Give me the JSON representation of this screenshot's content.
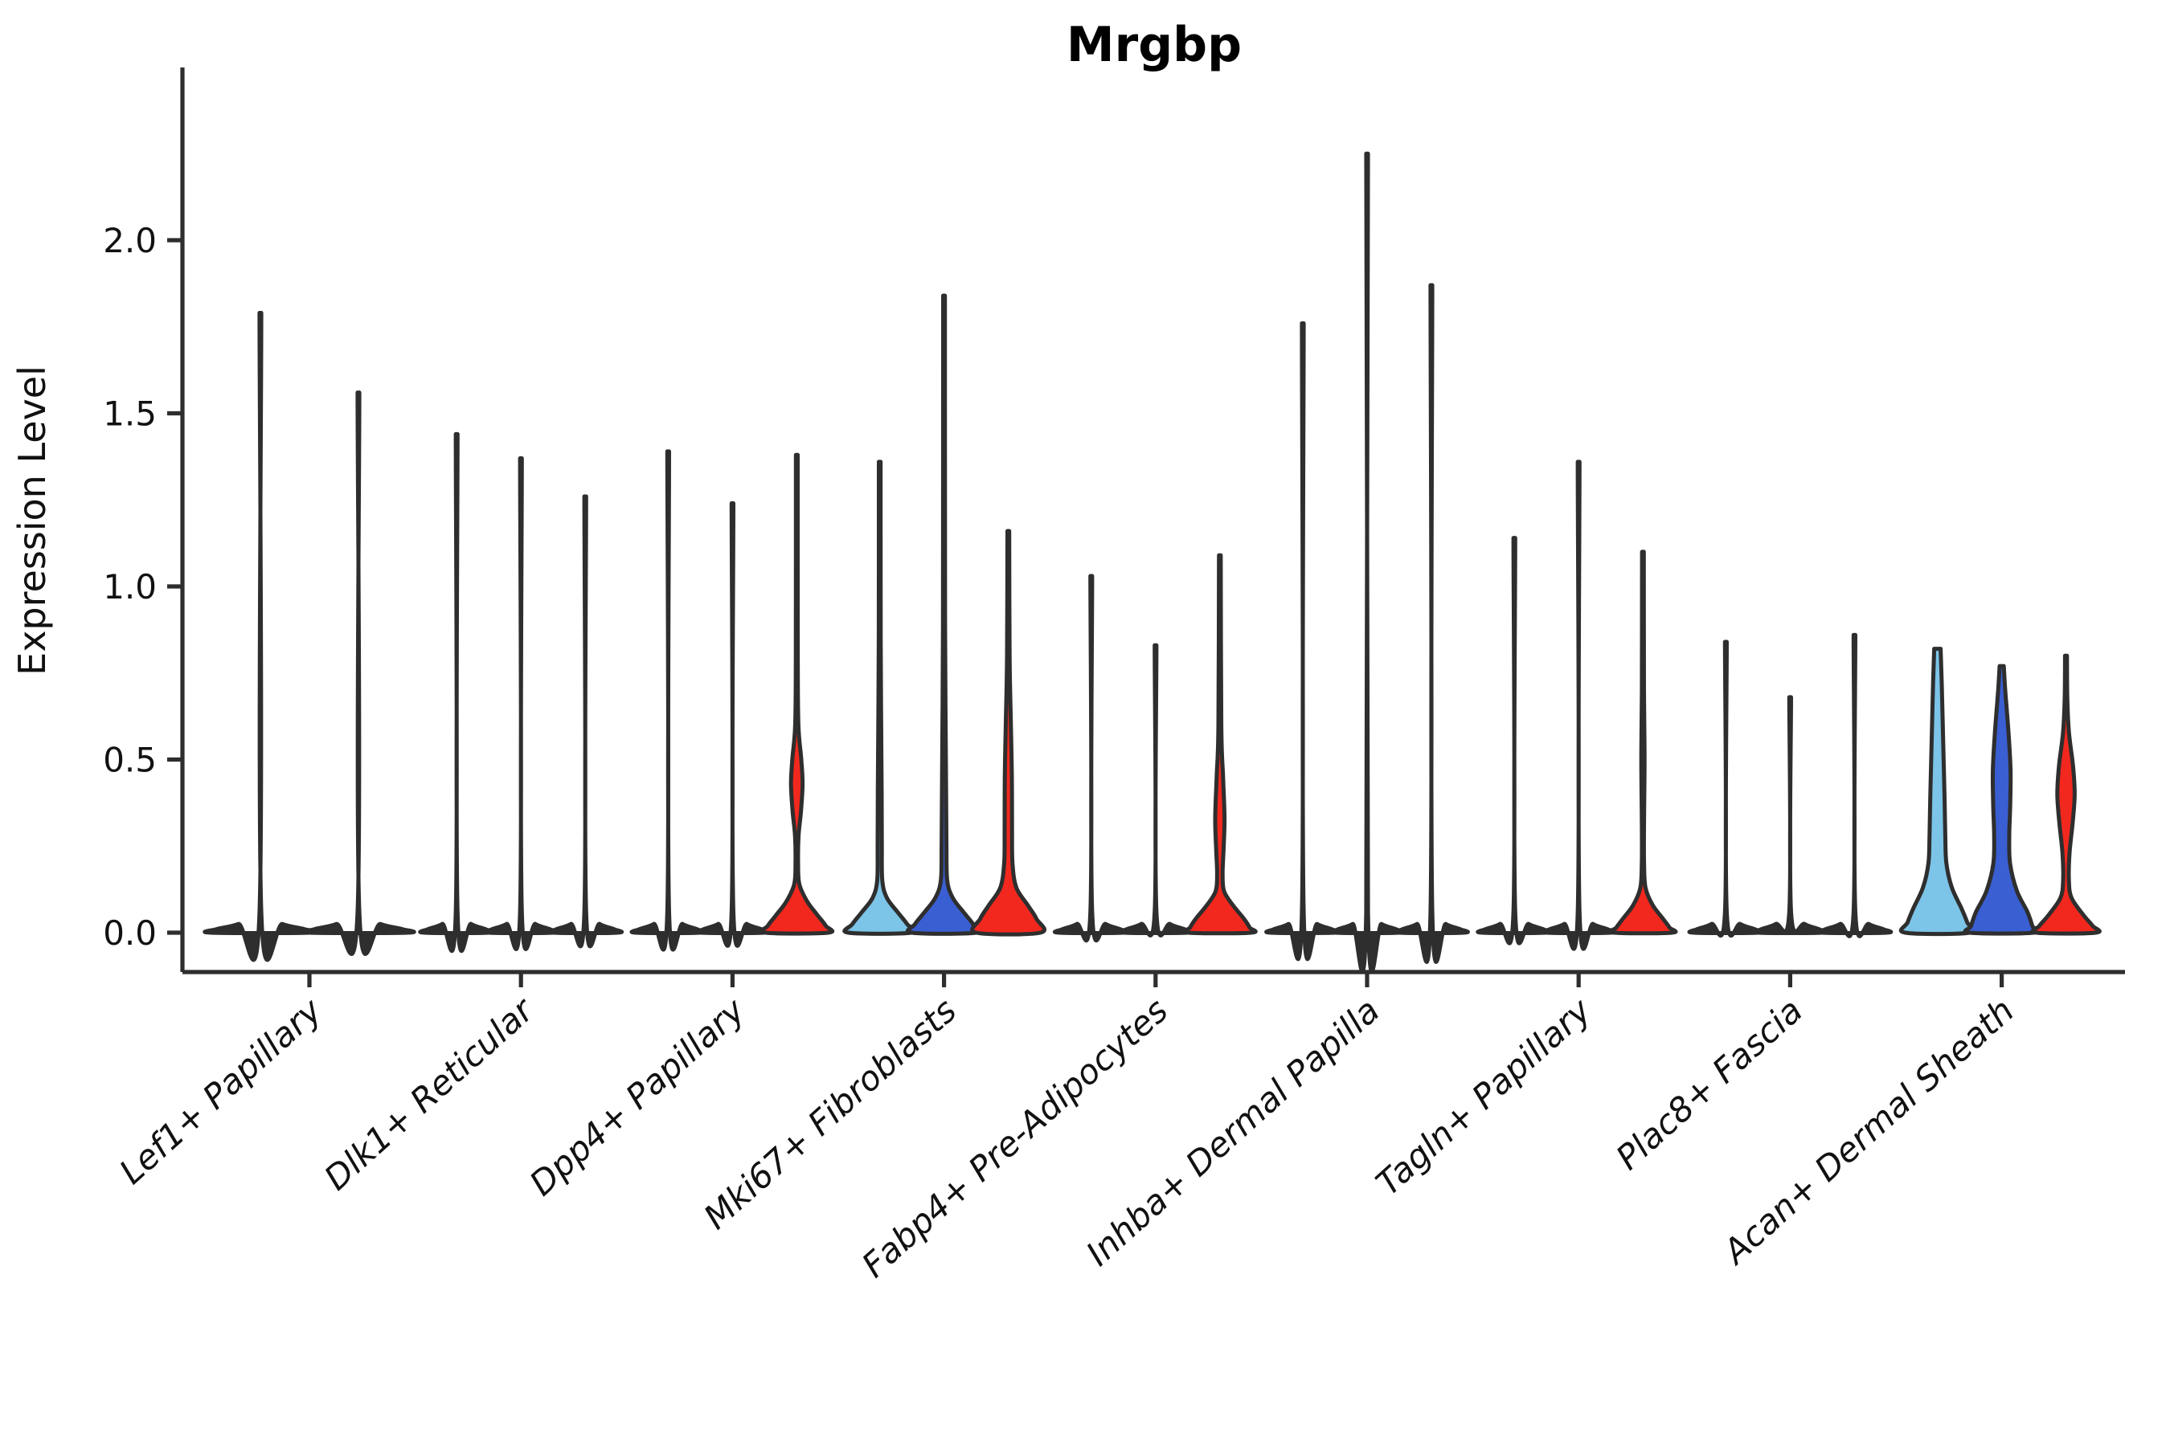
{
  "chart_data": {
    "type": "violin",
    "title": "Mrgbp",
    "xlabel": "",
    "ylabel": "Expression Level",
    "ytick_labels": [
      "0.0",
      "0.5",
      "1.0",
      "1.5",
      "2.0"
    ],
    "yticks": [
      0.0,
      0.5,
      1.0,
      1.5,
      2.0
    ],
    "ylim": [
      -0.06,
      2.35
    ],
    "grid": false,
    "legend": "none",
    "categories": [
      "Lef1+ Papillary",
      "Dlk1+ Reticular",
      "Dpp4+ Papillary",
      "Mki67+ Fibroblasts",
      "Fabp4+ Pre-Adipocytes",
      "Inhba+ Dermal Papilla",
      "Tagln+ Papillary",
      "Plac8+ Fascia",
      "Acan+ Dermal Sheath"
    ],
    "palette": {
      "light_blue": "#7CC4E8",
      "dark_blue": "#3A5FD2",
      "red": "#F2281E",
      "plain": "#2E2E2E",
      "outline": "#2E2E2E"
    },
    "groups": [
      {
        "category": "Lef1+ Papillary",
        "violins": [
          {
            "max": 1.79,
            "color": "plain"
          },
          {
            "max": 1.56,
            "color": "plain"
          }
        ]
      },
      {
        "category": "Dlk1+ Reticular",
        "violins": [
          {
            "max": 1.44,
            "color": "plain"
          },
          {
            "max": 1.37,
            "color": "plain"
          },
          {
            "max": 1.26,
            "color": "plain"
          }
        ]
      },
      {
        "category": "Dpp4+ Papillary",
        "violins": [
          {
            "max": 1.39,
            "color": "plain"
          },
          {
            "max": 1.24,
            "color": "plain"
          },
          {
            "max": 1.38,
            "color": "red",
            "profile": [
              [
                1.38,
                0.55
              ],
              [
                0.8,
                0.6
              ],
              [
                0.6,
                1.0
              ],
              [
                0.5,
                2.8
              ],
              [
                0.43,
                3.6
              ],
              [
                0.35,
                2.6
              ],
              [
                0.28,
                1.1
              ],
              [
                0.2,
                0.8
              ],
              [
                0.14,
                1.6
              ],
              [
                0.09,
                6.5
              ],
              [
                0.05,
                13
              ],
              [
                0.02,
                18
              ],
              [
                0,
                19.5
              ]
            ]
          }
        ]
      },
      {
        "category": "Mki67+ Fibroblasts",
        "violins": [
          {
            "max": 1.36,
            "color": "light_blue",
            "profile": [
              [
                1.36,
                0.55
              ],
              [
                0.85,
                0.6
              ],
              [
                0.6,
                0.9
              ],
              [
                0.4,
                1.2
              ],
              [
                0.25,
                1.3
              ],
              [
                0.15,
                1.6
              ],
              [
                0.1,
                4.5
              ],
              [
                0.06,
                11
              ],
              [
                0.025,
                17
              ],
              [
                0,
                19.5
              ]
            ]
          },
          {
            "max": 1.84,
            "color": "dark_blue",
            "profile": [
              [
                1.84,
                0.55
              ],
              [
                0.9,
                0.65
              ],
              [
                0.6,
                1.0
              ],
              [
                0.4,
                1.3
              ],
              [
                0.25,
                1.5
              ],
              [
                0.15,
                2.0
              ],
              [
                0.1,
                5.5
              ],
              [
                0.06,
                12
              ],
              [
                0.025,
                18
              ],
              [
                0,
                20
              ]
            ]
          },
          {
            "max": 1.16,
            "color": "red",
            "profile": [
              [
                1.16,
                0.55
              ],
              [
                0.8,
                0.8
              ],
              [
                0.6,
                1.6
              ],
              [
                0.45,
                2.2
              ],
              [
                0.3,
                2.3
              ],
              [
                0.2,
                2.6
              ],
              [
                0.13,
                5
              ],
              [
                0.08,
                12
              ],
              [
                0.04,
                17.5
              ],
              [
                0,
                20
              ]
            ]
          }
        ]
      },
      {
        "category": "Fabp4+ Pre-Adipocytes",
        "violins": [
          {
            "max": 1.03,
            "color": "plain"
          },
          {
            "max": 0.83,
            "color": "plain"
          },
          {
            "max": 1.09,
            "color": "red",
            "profile": [
              [
                1.09,
                0.55
              ],
              [
                0.6,
                0.9
              ],
              [
                0.45,
                2.0
              ],
              [
                0.33,
                2.9
              ],
              [
                0.24,
                2.3
              ],
              [
                0.17,
                1.7
              ],
              [
                0.12,
                2.6
              ],
              [
                0.08,
                8
              ],
              [
                0.04,
                15
              ],
              [
                0.015,
                18.5
              ],
              [
                0,
                19.5
              ]
            ]
          }
        ]
      },
      {
        "category": "Inhba+ Dermal Papilla",
        "violins": [
          {
            "max": 1.76,
            "color": "plain"
          },
          {
            "max": 2.25,
            "color": "plain"
          },
          {
            "max": 1.87,
            "color": "plain"
          }
        ]
      },
      {
        "category": "Tagln+ Papillary",
        "violins": [
          {
            "max": 1.14,
            "color": "plain"
          },
          {
            "max": 1.36,
            "color": "plain"
          },
          {
            "max": 1.1,
            "color": "red",
            "profile": [
              [
                1.1,
                0.55
              ],
              [
                0.7,
                0.65
              ],
              [
                0.52,
                1.0
              ],
              [
                0.42,
                0.9
              ],
              [
                0.3,
                0.65
              ],
              [
                0.2,
                0.7
              ],
              [
                0.13,
                1.6
              ],
              [
                0.08,
                6
              ],
              [
                0.04,
                12.5
              ],
              [
                0.015,
                16.5
              ],
              [
                0,
                18
              ]
            ]
          }
        ]
      },
      {
        "category": "Plac8+ Fascia",
        "violins": [
          {
            "max": 0.84,
            "color": "plain"
          },
          {
            "max": 0.68,
            "color": "plain"
          },
          {
            "max": 0.86,
            "color": "plain"
          }
        ]
      },
      {
        "category": "Acan+ Dermal Sheath",
        "violins": [
          {
            "max": 0.82,
            "color": "light_blue",
            "profile": [
              [
                0.82,
                2.0
              ],
              [
                0.72,
                2.7
              ],
              [
                0.55,
                3.6
              ],
              [
                0.4,
                4.4
              ],
              [
                0.28,
                4.9
              ],
              [
                0.2,
                5.6
              ],
              [
                0.13,
                9
              ],
              [
                0.07,
                15
              ],
              [
                0.03,
                18.5
              ],
              [
                0,
                20
              ]
            ]
          },
          {
            "max": 0.77,
            "color": "dark_blue",
            "profile": [
              [
                0.77,
                1.3
              ],
              [
                0.7,
                2.2
              ],
              [
                0.58,
                4.2
              ],
              [
                0.47,
                5.5
              ],
              [
                0.37,
                5.3
              ],
              [
                0.28,
                4.7
              ],
              [
                0.2,
                5.2
              ],
              [
                0.12,
                9.5
              ],
              [
                0.06,
                16
              ],
              [
                0.02,
                19
              ],
              [
                0,
                20
              ]
            ]
          },
          {
            "max": 0.8,
            "color": "red",
            "profile": [
              [
                0.8,
                0.6
              ],
              [
                0.68,
                0.8
              ],
              [
                0.58,
                1.8
              ],
              [
                0.48,
                4.4
              ],
              [
                0.4,
                5.4
              ],
              [
                0.32,
                4.2
              ],
              [
                0.23,
                2.2
              ],
              [
                0.15,
                1.8
              ],
              [
                0.1,
                3.5
              ],
              [
                0.05,
                11
              ],
              [
                0.02,
                16.5
              ],
              [
                0,
                18.5
              ]
            ]
          }
        ]
      }
    ]
  }
}
